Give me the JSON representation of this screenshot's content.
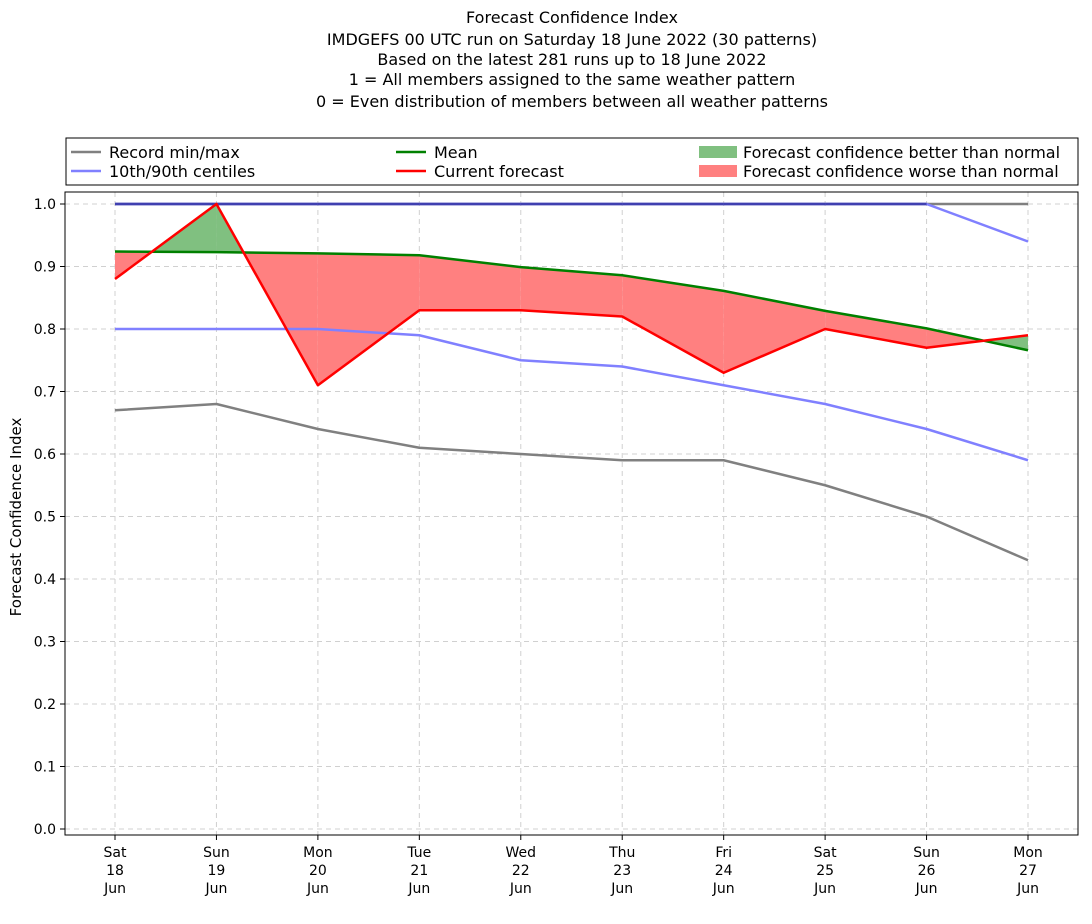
{
  "chart_data": {
    "type": "line",
    "title_lines": [
      "Forecast Confidence Index",
      "IMDGEFS 00 UTC run on Saturday 18 June 2022 (30 patterns)",
      "Based on the latest 281 runs up to 18 June 2022",
      "1 = All members assigned to the same weather pattern",
      "0 = Even distribution of members between all weather patterns"
    ],
    "ylabel": "Forecast Confidence Index",
    "ylim": [
      0.0,
      1.0
    ],
    "yticks": [
      "0.0",
      "0.1",
      "0.2",
      "0.3",
      "0.4",
      "0.5",
      "0.6",
      "0.7",
      "0.8",
      "0.9",
      "1.0"
    ],
    "grid": true,
    "legend_position": "top",
    "categories": [
      [
        "Sat",
        "18",
        "Jun"
      ],
      [
        "Sun",
        "19",
        "Jun"
      ],
      [
        "Mon",
        "20",
        "Jun"
      ],
      [
        "Tue",
        "21",
        "Jun"
      ],
      [
        "Wed",
        "22",
        "Jun"
      ],
      [
        "Thu",
        "23",
        "Jun"
      ],
      [
        "Fri",
        "24",
        "Jun"
      ],
      [
        "Sat",
        "25",
        "Jun"
      ],
      [
        "Sun",
        "26",
        "Jun"
      ],
      [
        "Mon",
        "27",
        "Jun"
      ]
    ],
    "record_min": [
      0.67,
      0.68,
      0.64,
      0.61,
      0.6,
      0.59,
      0.59,
      0.55,
      0.5,
      0.43
    ],
    "record_max": [
      1.0,
      1.0,
      1.0,
      1.0,
      1.0,
      1.0,
      1.0,
      1.0,
      1.0,
      1.0
    ],
    "centile_10": [
      0.8,
      0.8,
      0.8,
      0.79,
      0.75,
      0.74,
      0.71,
      0.68,
      0.64,
      0.59
    ],
    "centile_90": [
      1.0,
      1.0,
      1.0,
      1.0,
      1.0,
      1.0,
      1.0,
      1.0,
      1.0,
      0.94
    ],
    "mean": [
      0.924,
      0.923,
      0.921,
      0.918,
      0.899,
      0.886,
      0.861,
      0.829,
      0.801,
      0.766
    ],
    "current_forecast": [
      0.88,
      1.0,
      0.71,
      0.83,
      0.83,
      0.82,
      0.73,
      0.8,
      0.77,
      0.79
    ],
    "legend": {
      "record": "Record min/max",
      "centiles": "10th/90th centiles",
      "mean": "Mean",
      "current": "Current forecast",
      "better": "Forecast confidence better than normal",
      "worse": "Forecast confidence worse than normal"
    },
    "colors": {
      "record": "#808080",
      "centiles": "#8080ff",
      "mean": "#008000",
      "current": "#ff0000",
      "better": "#80c080",
      "worse": "#ff8080",
      "overlap": "#4040b0",
      "grid": "#d0d0d0"
    }
  }
}
